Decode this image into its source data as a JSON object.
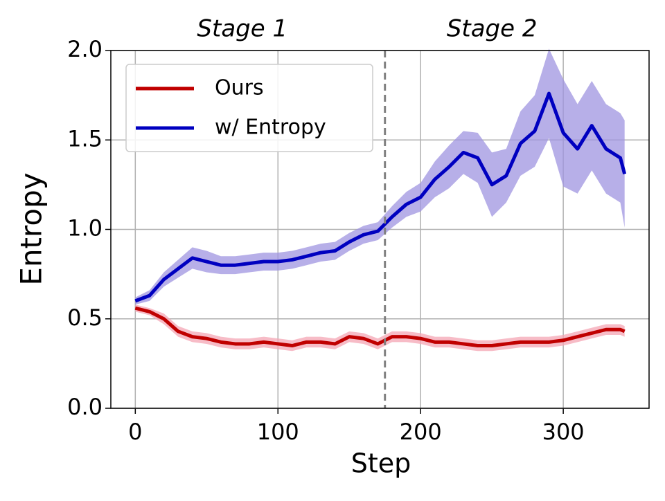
{
  "chart_data": {
    "type": "line",
    "xlabel": "Step",
    "ylabel": "Entropy",
    "annotations": [
      {
        "text": "Stage 1",
        "x": 75
      },
      {
        "text": "Stage 2",
        "x": 250
      }
    ],
    "vline": 175,
    "x": [
      0,
      10,
      20,
      30,
      40,
      50,
      60,
      70,
      80,
      90,
      100,
      110,
      120,
      130,
      140,
      150,
      160,
      170,
      180,
      190,
      200,
      210,
      220,
      230,
      240,
      250,
      260,
      270,
      280,
      290,
      300,
      310,
      320,
      330,
      340,
      343
    ],
    "series": [
      {
        "name": "Ours",
        "color": "#c00000",
        "band_color": "#f4a6b4",
        "values": [
          0.56,
          0.54,
          0.5,
          0.43,
          0.4,
          0.39,
          0.37,
          0.36,
          0.36,
          0.37,
          0.36,
          0.35,
          0.37,
          0.37,
          0.36,
          0.4,
          0.39,
          0.36,
          0.4,
          0.4,
          0.39,
          0.37,
          0.37,
          0.36,
          0.35,
          0.35,
          0.36,
          0.37,
          0.37,
          0.37,
          0.38,
          0.4,
          0.42,
          0.44,
          0.44,
          0.43
        ],
        "band": [
          0.02,
          0.02,
          0.03,
          0.03,
          0.03,
          0.03,
          0.03,
          0.03,
          0.03,
          0.03,
          0.03,
          0.03,
          0.03,
          0.03,
          0.03,
          0.03,
          0.03,
          0.03,
          0.03,
          0.03,
          0.03,
          0.03,
          0.03,
          0.03,
          0.03,
          0.03,
          0.03,
          0.03,
          0.03,
          0.03,
          0.03,
          0.03,
          0.03,
          0.03,
          0.03,
          0.03
        ]
      },
      {
        "name": "w/ Entropy",
        "color": "#0000c0",
        "band_color": "#9f94e0",
        "values": [
          0.6,
          0.63,
          0.72,
          0.78,
          0.84,
          0.82,
          0.8,
          0.8,
          0.81,
          0.82,
          0.82,
          0.83,
          0.85,
          0.87,
          0.88,
          0.93,
          0.97,
          0.99,
          1.07,
          1.14,
          1.18,
          1.28,
          1.35,
          1.43,
          1.4,
          1.25,
          1.3,
          1.48,
          1.55,
          1.76,
          1.54,
          1.45,
          1.58,
          1.45,
          1.4,
          1.31
        ],
        "band": [
          0.02,
          0.03,
          0.04,
          0.05,
          0.06,
          0.06,
          0.05,
          0.05,
          0.05,
          0.05,
          0.05,
          0.05,
          0.05,
          0.05,
          0.05,
          0.05,
          0.05,
          0.05,
          0.06,
          0.07,
          0.08,
          0.1,
          0.12,
          0.12,
          0.14,
          0.18,
          0.15,
          0.18,
          0.2,
          0.25,
          0.3,
          0.25,
          0.25,
          0.25,
          0.25,
          0.3
        ]
      }
    ],
    "xlim": [
      -17.15,
      360.15
    ],
    "ylim": [
      0,
      2.0
    ],
    "xticks": [
      0,
      100,
      200,
      300
    ],
    "yticks": [
      {
        "value": 0,
        "label": "0.0"
      },
      {
        "value": 0.5,
        "label": "0.5"
      },
      {
        "value": 1,
        "label": "1.0"
      },
      {
        "value": 1.5,
        "label": "1.5"
      },
      {
        "value": 2,
        "label": "2.0"
      }
    ],
    "grid": true,
    "legend": "upper left"
  }
}
